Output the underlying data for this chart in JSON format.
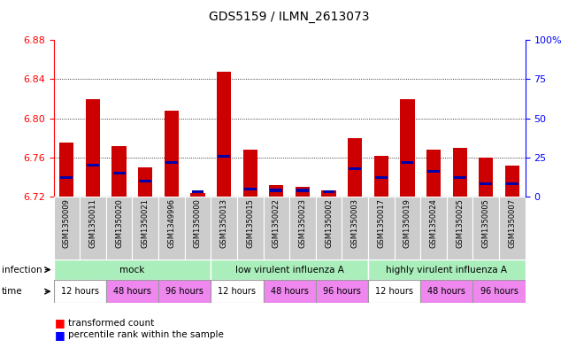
{
  "title": "GDS5159 / ILMN_2613073",
  "samples": [
    "GSM1350009",
    "GSM1350011",
    "GSM1350020",
    "GSM1350021",
    "GSM1349996",
    "GSM1350000",
    "GSM1350013",
    "GSM1350015",
    "GSM1350022",
    "GSM1350023",
    "GSM1350002",
    "GSM1350003",
    "GSM1350017",
    "GSM1350019",
    "GSM1350024",
    "GSM1350025",
    "GSM1350005",
    "GSM1350007"
  ],
  "red_values": [
    6.775,
    6.82,
    6.772,
    6.75,
    6.808,
    6.724,
    6.848,
    6.768,
    6.732,
    6.73,
    6.726,
    6.78,
    6.762,
    6.82,
    6.768,
    6.77,
    6.76,
    6.752
  ],
  "blue_percentiles": [
    12,
    20,
    15,
    10,
    22,
    3,
    26,
    5,
    4,
    4,
    3,
    18,
    12,
    22,
    16,
    12,
    8,
    8
  ],
  "y_min": 6.72,
  "y_max": 6.88,
  "y_ticks": [
    6.72,
    6.76,
    6.8,
    6.84,
    6.88
  ],
  "right_y_ticks": [
    0,
    25,
    50,
    75,
    100
  ],
  "right_y_labels": [
    "0",
    "25",
    "50",
    "75",
    "100%"
  ],
  "bar_color": "#CC0000",
  "blue_color": "#0000AA",
  "infection_labels": [
    "mock",
    "low virulent influenza A",
    "highly virulent influenza A"
  ],
  "infection_color": "#aaeebb",
  "infection_starts": [
    0,
    6,
    12
  ],
  "infection_ends": [
    6,
    12,
    18
  ],
  "time_labels": [
    "12 hours",
    "48 hours",
    "96 hours",
    "12 hours",
    "48 hours",
    "96 hours",
    "12 hours",
    "48 hours",
    "96 hours"
  ],
  "time_colors": [
    "#ffffff",
    "#ee88ee",
    "#ee88ee",
    "#ffffff",
    "#ee88ee",
    "#ee88ee",
    "#ffffff",
    "#ee88ee",
    "#ee88ee"
  ],
  "time_starts": [
    0,
    2,
    4,
    6,
    8,
    10,
    12,
    14,
    16
  ],
  "time_ends": [
    2,
    4,
    6,
    8,
    10,
    12,
    14,
    16,
    18
  ],
  "tick_bg_color": "#cccccc"
}
